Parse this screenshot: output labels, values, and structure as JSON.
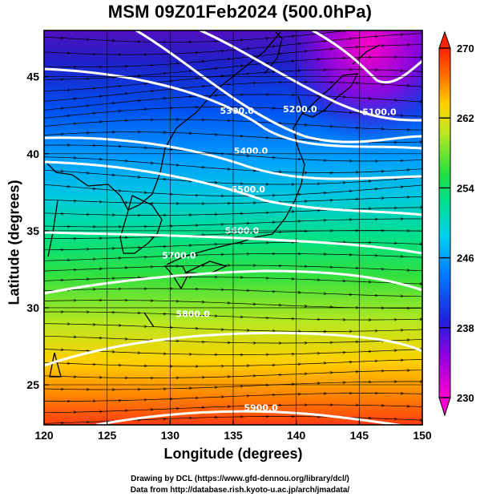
{
  "chart_data": {
    "type": "heatmap",
    "title": "MSM 09Z01Feb2024 (500.0hPa)",
    "xlabel": "Longitude (degrees)",
    "ylabel": "Latitude  (degrees)",
    "xlim": [
      120,
      150
    ],
    "ylim": [
      22.4,
      48
    ],
    "x_ticks": [
      120,
      125,
      130,
      135,
      140,
      145,
      150
    ],
    "y_ticks": [
      25,
      30,
      35,
      40,
      45
    ],
    "colorbar": {
      "ticks": [
        230,
        238,
        246,
        254,
        262,
        270
      ],
      "range": [
        230,
        270
      ],
      "colors": [
        "#ff00c8",
        "#7a00e0",
        "#1030e0",
        "#0070ff",
        "#00d8ff",
        "#00e0a0",
        "#20e040",
        "#b0e820",
        "#f0e000",
        "#ffa000",
        "#ff5000",
        "#ff2000"
      ]
    },
    "contours": [
      {
        "label": "5100.0",
        "lon": 146.6,
        "lat": 42.5
      },
      {
        "label": "5200.0",
        "lon": 140.3,
        "lat": 42.7
      },
      {
        "label": "5300.0",
        "lon": 135.3,
        "lat": 42.6
      },
      {
        "label": "5400.0",
        "lon": 136.4,
        "lat": 40.0
      },
      {
        "label": "5500.0",
        "lon": 136.2,
        "lat": 37.5
      },
      {
        "label": "5600.0",
        "lon": 135.7,
        "lat": 34.8
      },
      {
        "label": "5700.0",
        "lon": 130.7,
        "lat": 33.2
      },
      {
        "label": "5800.0",
        "lon": 131.8,
        "lat": 29.4
      },
      {
        "label": "5900.0",
        "lon": 137.2,
        "lat": 23.3
      }
    ]
  },
  "credits": {
    "line1": "Drawing by DCL (https://www.gfd-dennou.org/library/dcl/)",
    "line2": "Data from http://database.rish.kyoto-u.ac.jp/arch/jmadata/"
  }
}
